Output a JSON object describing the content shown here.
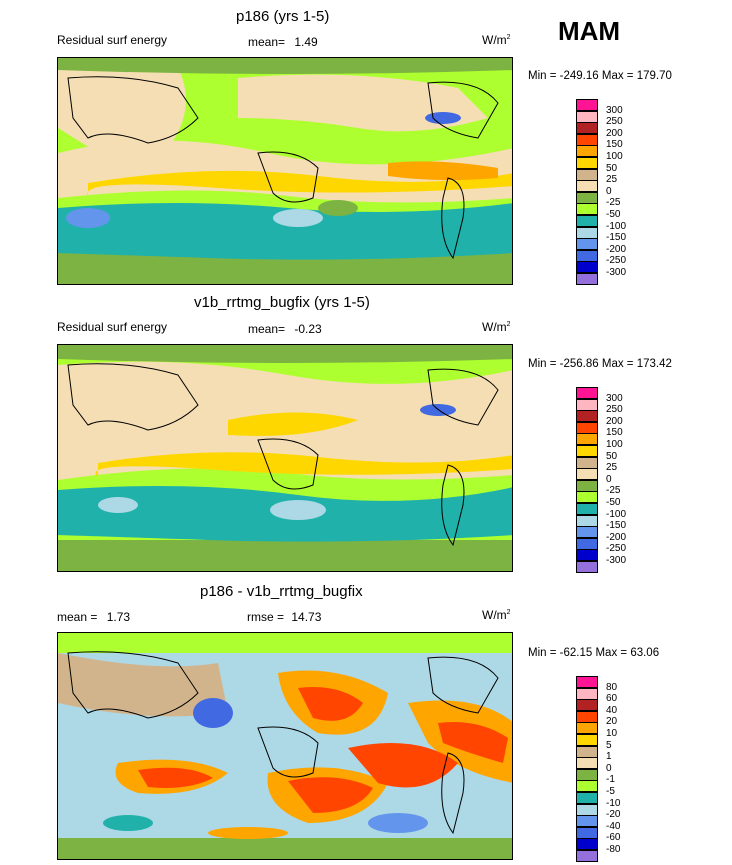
{
  "season": "MAM",
  "panels": [
    {
      "title": "p186 (yrs 1-5)",
      "label": "Residual surf energy",
      "mean_label": "mean=",
      "mean": "1.49",
      "units": "W/m",
      "units_exp": "2",
      "min_label": "Min =",
      "min": "-249.16",
      "max_label": "Max =",
      "max": "179.70",
      "levels": [
        "300",
        "250",
        "200",
        "150",
        "100",
        "50",
        "25",
        "0",
        "-25",
        "-50",
        "-100",
        "-150",
        "-200",
        "-250",
        "-300"
      ],
      "colors": [
        "#ff1493",
        "#ffb6c1",
        "#b22222",
        "#ff4500",
        "#ffa500",
        "#ffd700",
        "#d2b48c",
        "#f5deb3",
        "#7cb342",
        "#adff2f",
        "#20b2aa",
        "#add8e6",
        "#6495ed",
        "#4169e1",
        "#0000cd",
        "#9370db"
      ]
    },
    {
      "title": "v1b_rrtmg_bugfix (yrs 1-5)",
      "label": "Residual surf energy",
      "mean_label": "mean=",
      "mean": "-0.23",
      "units": "W/m",
      "units_exp": "2",
      "min_label": "Min =",
      "min": "-256.86",
      "max_label": "Max =",
      "max": "173.42",
      "levels": [
        "300",
        "250",
        "200",
        "150",
        "100",
        "50",
        "25",
        "0",
        "-25",
        "-50",
        "-100",
        "-150",
        "-200",
        "-250",
        "-300"
      ],
      "colors": [
        "#ff1493",
        "#ffb6c1",
        "#b22222",
        "#ff4500",
        "#ffa500",
        "#ffd700",
        "#d2b48c",
        "#f5deb3",
        "#7cb342",
        "#adff2f",
        "#20b2aa",
        "#add8e6",
        "#6495ed",
        "#4169e1",
        "#0000cd",
        "#9370db"
      ]
    },
    {
      "title": "p186 - v1b_rrtmg_bugfix",
      "label": "",
      "mean_label": "mean =",
      "mean": "1.73",
      "rmse_label": "rmse =",
      "rmse": "14.73",
      "units": "W/m",
      "units_exp": "2",
      "min_label": "Min =",
      "min": "-62.15",
      "max_label": "Max =",
      "max": "63.06",
      "levels": [
        "80",
        "60",
        "40",
        "20",
        "10",
        "5",
        "1",
        "0",
        "-1",
        "-5",
        "-10",
        "-20",
        "-40",
        "-60",
        "-80"
      ],
      "colors": [
        "#ff1493",
        "#ffb6c1",
        "#b22222",
        "#ff4500",
        "#ffa500",
        "#ffd700",
        "#d2b48c",
        "#f5deb3",
        "#7cb342",
        "#adff2f",
        "#20b2aa",
        "#add8e6",
        "#6495ed",
        "#4169e1",
        "#0000cd",
        "#9370db"
      ]
    }
  ],
  "chart_data": [
    {
      "type": "heatmap",
      "title": "p186 (yrs 1-5)",
      "subtitle": "Residual surf energy",
      "mean": 1.49,
      "units": "W/m2",
      "min": -249.16,
      "max": 179.7,
      "contour_levels": [
        300,
        250,
        200,
        150,
        100,
        50,
        25,
        0,
        -25,
        -50,
        -100,
        -150,
        -200,
        -250,
        -300
      ]
    },
    {
      "type": "heatmap",
      "title": "v1b_rrtmg_bugfix (yrs 1-5)",
      "subtitle": "Residual surf energy",
      "mean": -0.23,
      "units": "W/m2",
      "min": -256.86,
      "max": 173.42,
      "contour_levels": [
        300,
        250,
        200,
        150,
        100,
        50,
        25,
        0,
        -25,
        -50,
        -100,
        -150,
        -200,
        -250,
        -300
      ]
    },
    {
      "type": "heatmap",
      "title": "p186 - v1b_rrtmg_bugfix",
      "mean": 1.73,
      "rmse": 14.73,
      "units": "W/m2",
      "min": -62.15,
      "max": 63.06,
      "contour_levels": [
        80,
        60,
        40,
        20,
        10,
        5,
        1,
        0,
        -1,
        -5,
        -10,
        -20,
        -40,
        -60,
        -80
      ]
    }
  ]
}
